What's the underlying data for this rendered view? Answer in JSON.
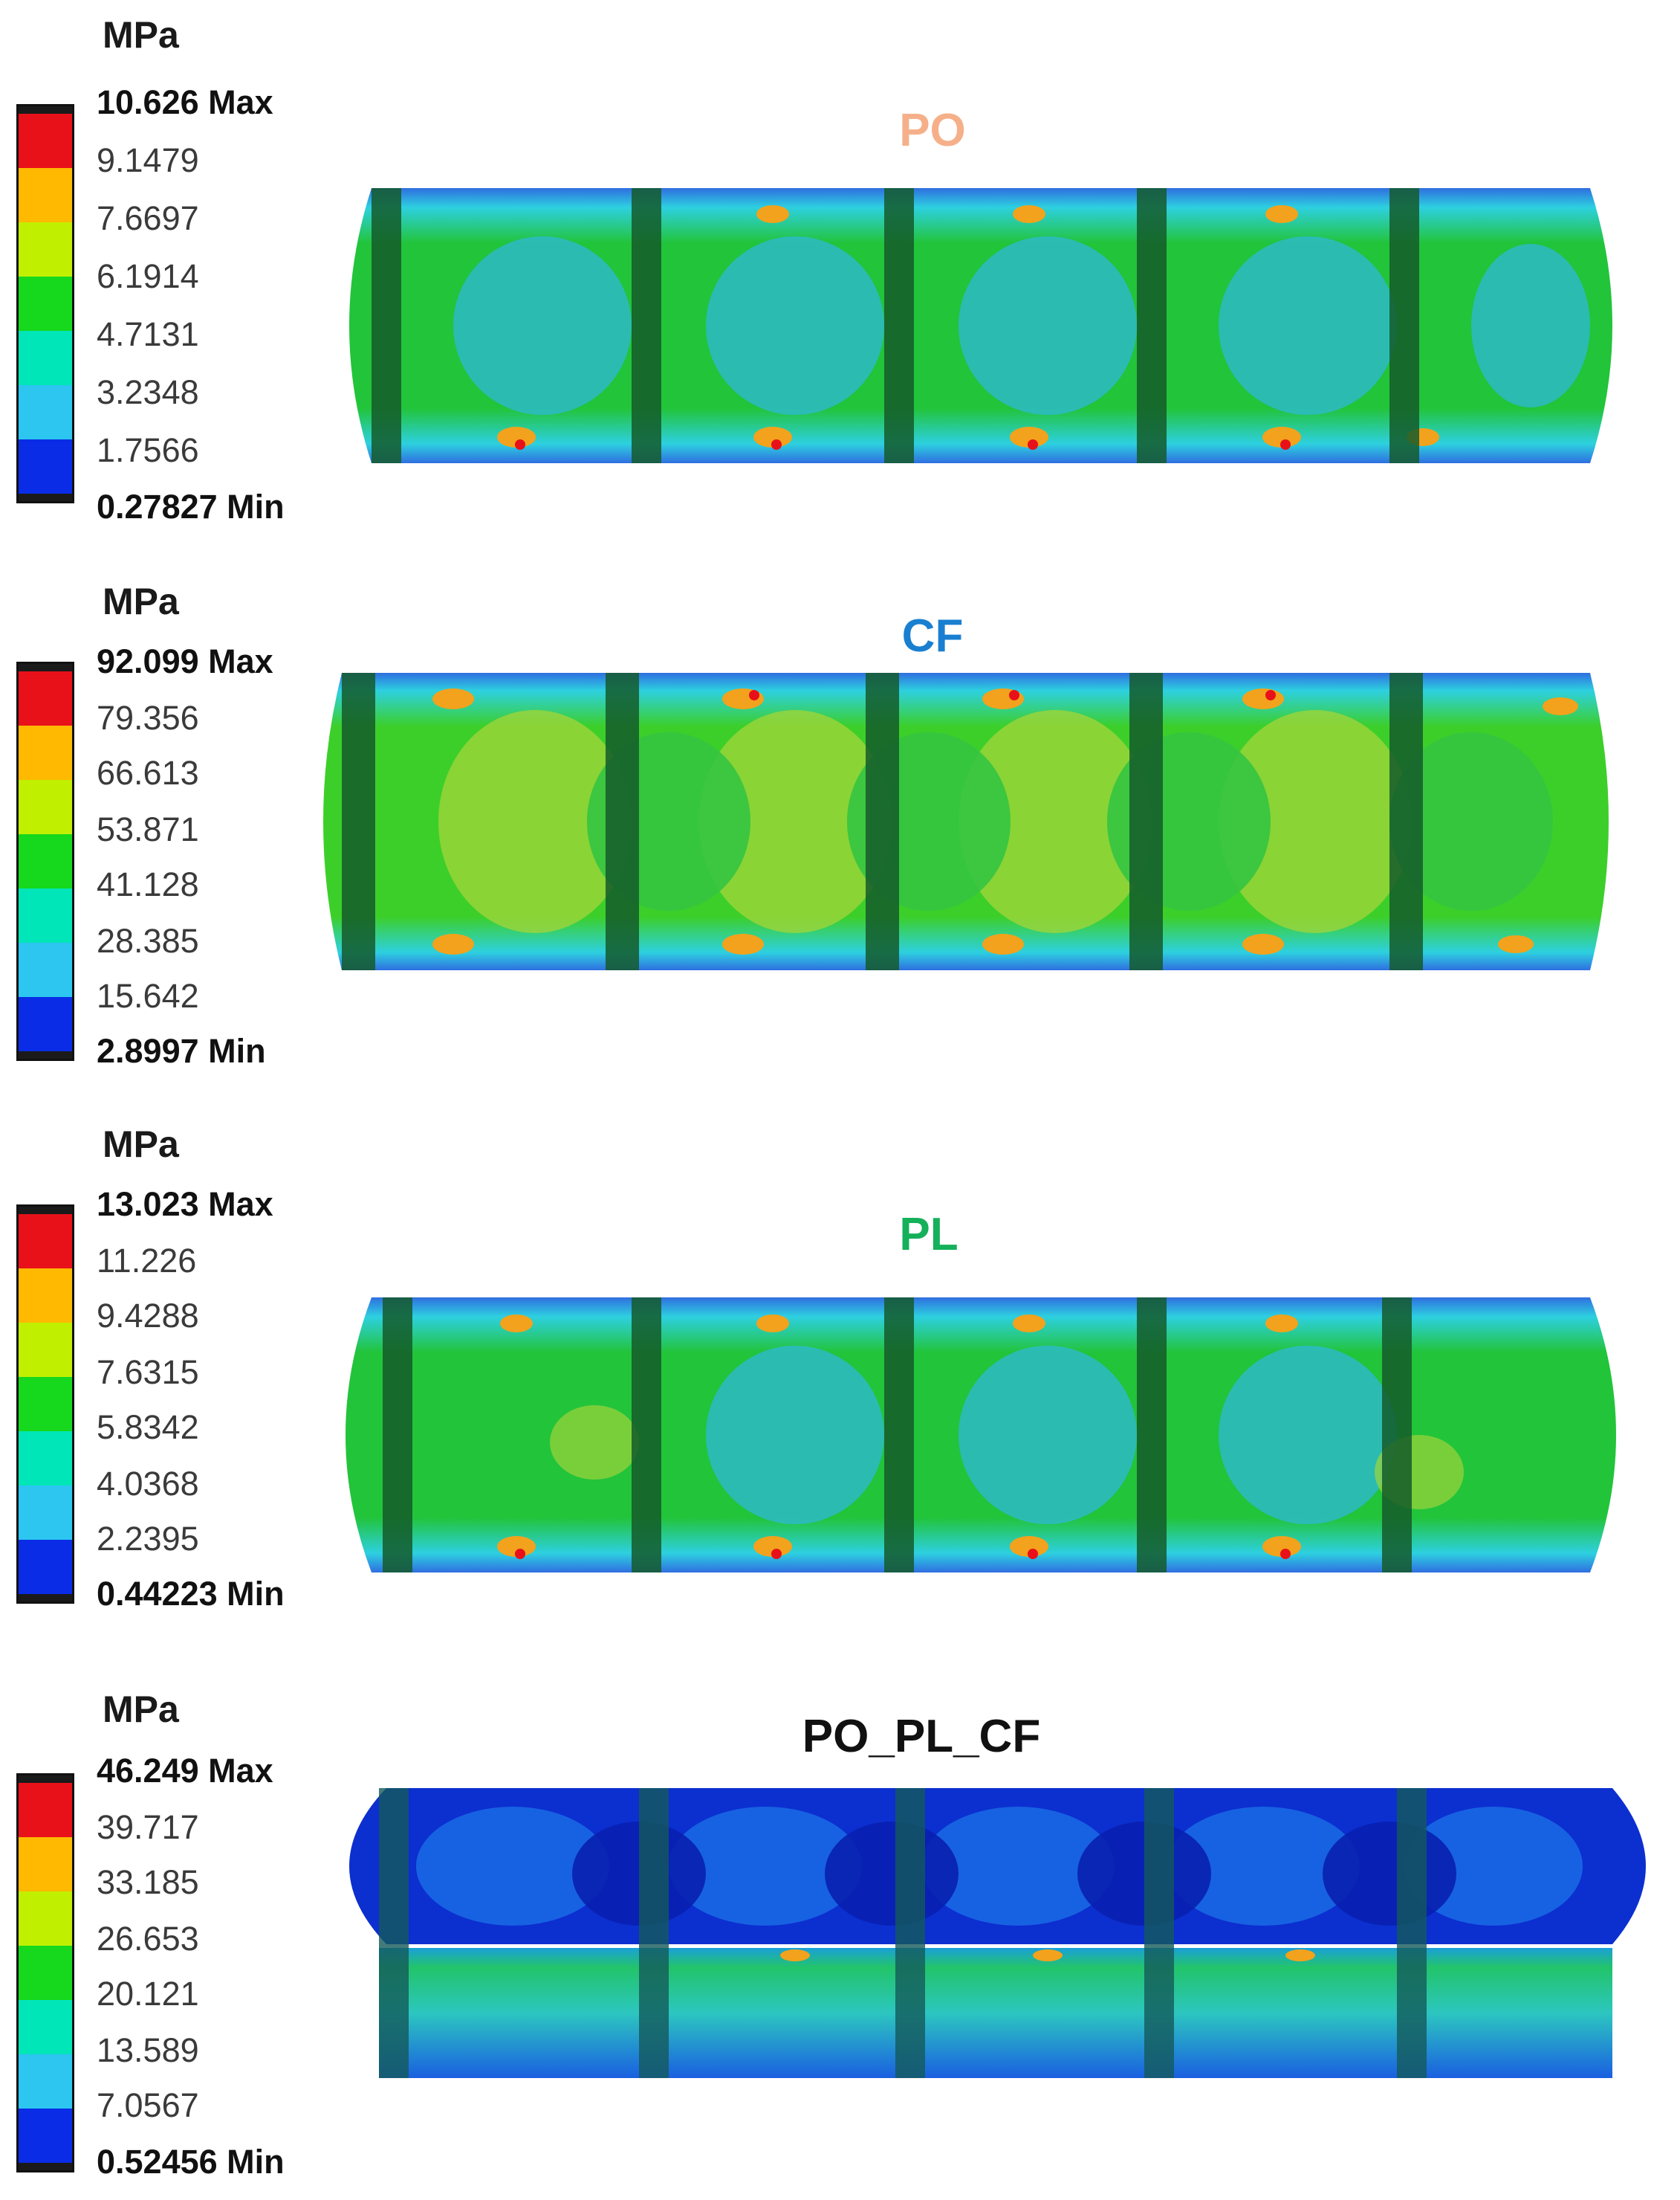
{
  "legend_colors": [
    "#e8111a",
    "#ffb900",
    "#c0f000",
    "#16d81c",
    "#00e6b8",
    "#2cc6f0",
    "#0a2ce6"
  ],
  "panels": [
    {
      "title": "PO",
      "title_color": "#f5b08a",
      "unit": "MPa",
      "ticks": [
        "10.626 Max",
        "9.1479",
        "7.6697",
        "6.1914",
        "4.7131",
        "3.2348",
        "1.7566",
        "0.27827 Min"
      ]
    },
    {
      "title": "CF",
      "title_color": "#1a7fd0",
      "unit": "MPa",
      "ticks": [
        "92.099 Max",
        "79.356",
        "66.613",
        "53.871",
        "41.128",
        "28.385",
        "15.642",
        "2.8997 Min"
      ]
    },
    {
      "title": "PL",
      "title_color": "#14b05a",
      "unit": "MPa",
      "ticks": [
        "13.023 Max",
        "11.226",
        "9.4288",
        "7.6315",
        "5.8342",
        "4.0368",
        "2.2395",
        "0.44223 Min"
      ]
    },
    {
      "title": "PO_PL_CF",
      "title_color": "#111111",
      "unit": "MPa",
      "ticks": [
        "46.249 Max",
        "39.717",
        "33.185",
        "26.653",
        "20.121",
        "13.589",
        "7.0567",
        "0.52456 Min"
      ]
    }
  ]
}
